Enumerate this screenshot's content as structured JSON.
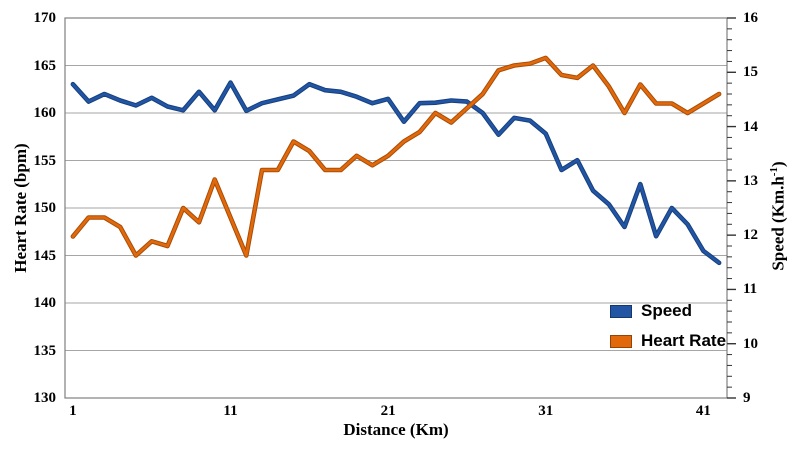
{
  "chart_data": {
    "type": "line",
    "title": "",
    "xlabel": "Distance (Km)",
    "ylabel_left": "Heart Rate (bpm)",
    "ylabel_right": "Speed (Km.h-1)",
    "ylabel_right_prefix": "Speed (Km.h",
    "ylabel_right_sup": "-1",
    "ylabel_right_suffix": ")",
    "x": [
      1,
      2,
      3,
      4,
      5,
      6,
      7,
      8,
      9,
      10,
      11,
      12,
      13,
      14,
      15,
      16,
      17,
      18,
      19,
      20,
      21,
      22,
      23,
      24,
      25,
      26,
      27,
      28,
      29,
      30,
      31,
      32,
      33,
      34,
      35,
      36,
      37,
      38,
      39,
      40,
      41,
      42
    ],
    "x_tick_labels": [
      1,
      11,
      21,
      31,
      41
    ],
    "left_axis": {
      "min": 130,
      "max": 170,
      "step": 5,
      "ticks": [
        130,
        135,
        140,
        145,
        150,
        155,
        160,
        165,
        170
      ]
    },
    "right_axis": {
      "min": 9,
      "max": 16,
      "step": 1,
      "minor_divisions": 5,
      "ticks": [
        9,
        10,
        11,
        12,
        13,
        14,
        15,
        16
      ]
    },
    "grid": "horizontal",
    "legend_position": "inside-right-middle",
    "series": [
      {
        "name": "Speed",
        "axis": "right",
        "color": "#2255A4",
        "edge_color": "#16407E",
        "values": [
          14.78,
          14.46,
          14.6,
          14.48,
          14.39,
          14.53,
          14.37,
          14.3,
          14.64,
          14.3,
          14.81,
          14.29,
          14.43,
          14.5,
          14.57,
          14.78,
          14.67,
          14.64,
          14.55,
          14.43,
          14.51,
          14.09,
          14.43,
          14.44,
          14.48,
          14.46,
          14.25,
          13.85,
          14.16,
          14.11,
          13.87,
          13.2,
          13.38,
          12.82,
          12.57,
          12.15,
          12.94,
          11.98,
          12.5,
          12.2,
          11.71,
          11.49
        ]
      },
      {
        "name": "Heart Rate",
        "axis": "left",
        "color": "#E2690B",
        "edge_color": "#A84D06",
        "values": [
          147,
          149,
          149,
          148,
          145,
          146.5,
          146,
          150,
          148.5,
          153,
          149,
          145,
          154,
          154,
          157,
          156,
          154,
          154,
          155.5,
          154.5,
          155.5,
          157,
          158,
          160,
          159,
          160.5,
          162,
          164.5,
          165,
          165.2,
          165.8,
          164,
          163.7,
          165,
          162.8,
          160,
          163,
          161,
          161,
          160,
          161,
          162
        ]
      }
    ],
    "colors": {
      "grid": "#A6A6A6",
      "border": "#808080",
      "tick": "#333333",
      "text": "#000000",
      "background": "#FFFFFF"
    }
  }
}
